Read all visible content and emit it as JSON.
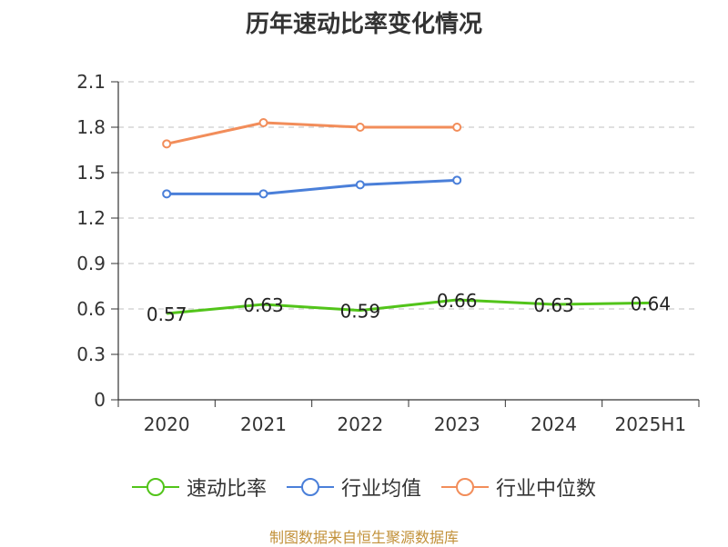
{
  "chart_data": {
    "type": "line",
    "title": "历年速动比率变化情况",
    "categories": [
      "2020",
      "2021",
      "2022",
      "2023",
      "2024",
      "2025H1"
    ],
    "ylim": [
      0,
      2.1
    ],
    "yticks": [
      "0",
      "0.3",
      "0.6",
      "0.9",
      "1.2",
      "1.5",
      "1.8",
      "2.1"
    ],
    "grid": true,
    "legend_position": "bottom",
    "series": [
      {
        "name": "速动比率",
        "color": "#52c41a",
        "values": [
          0.57,
          0.63,
          0.59,
          0.66,
          0.63,
          0.64
        ],
        "labels": [
          "0.57",
          "0.63",
          "0.59",
          "0.66",
          "0.63",
          "0.64"
        ]
      },
      {
        "name": "行业均值",
        "color": "#4a7fd9",
        "values": [
          1.36,
          1.36,
          1.42,
          1.45,
          null,
          null
        ]
      },
      {
        "name": "行业中位数",
        "color": "#f28d5a",
        "values": [
          1.69,
          1.83,
          1.8,
          1.8,
          null,
          null
        ]
      }
    ]
  },
  "source": "制图数据来自恒生聚源数据库"
}
